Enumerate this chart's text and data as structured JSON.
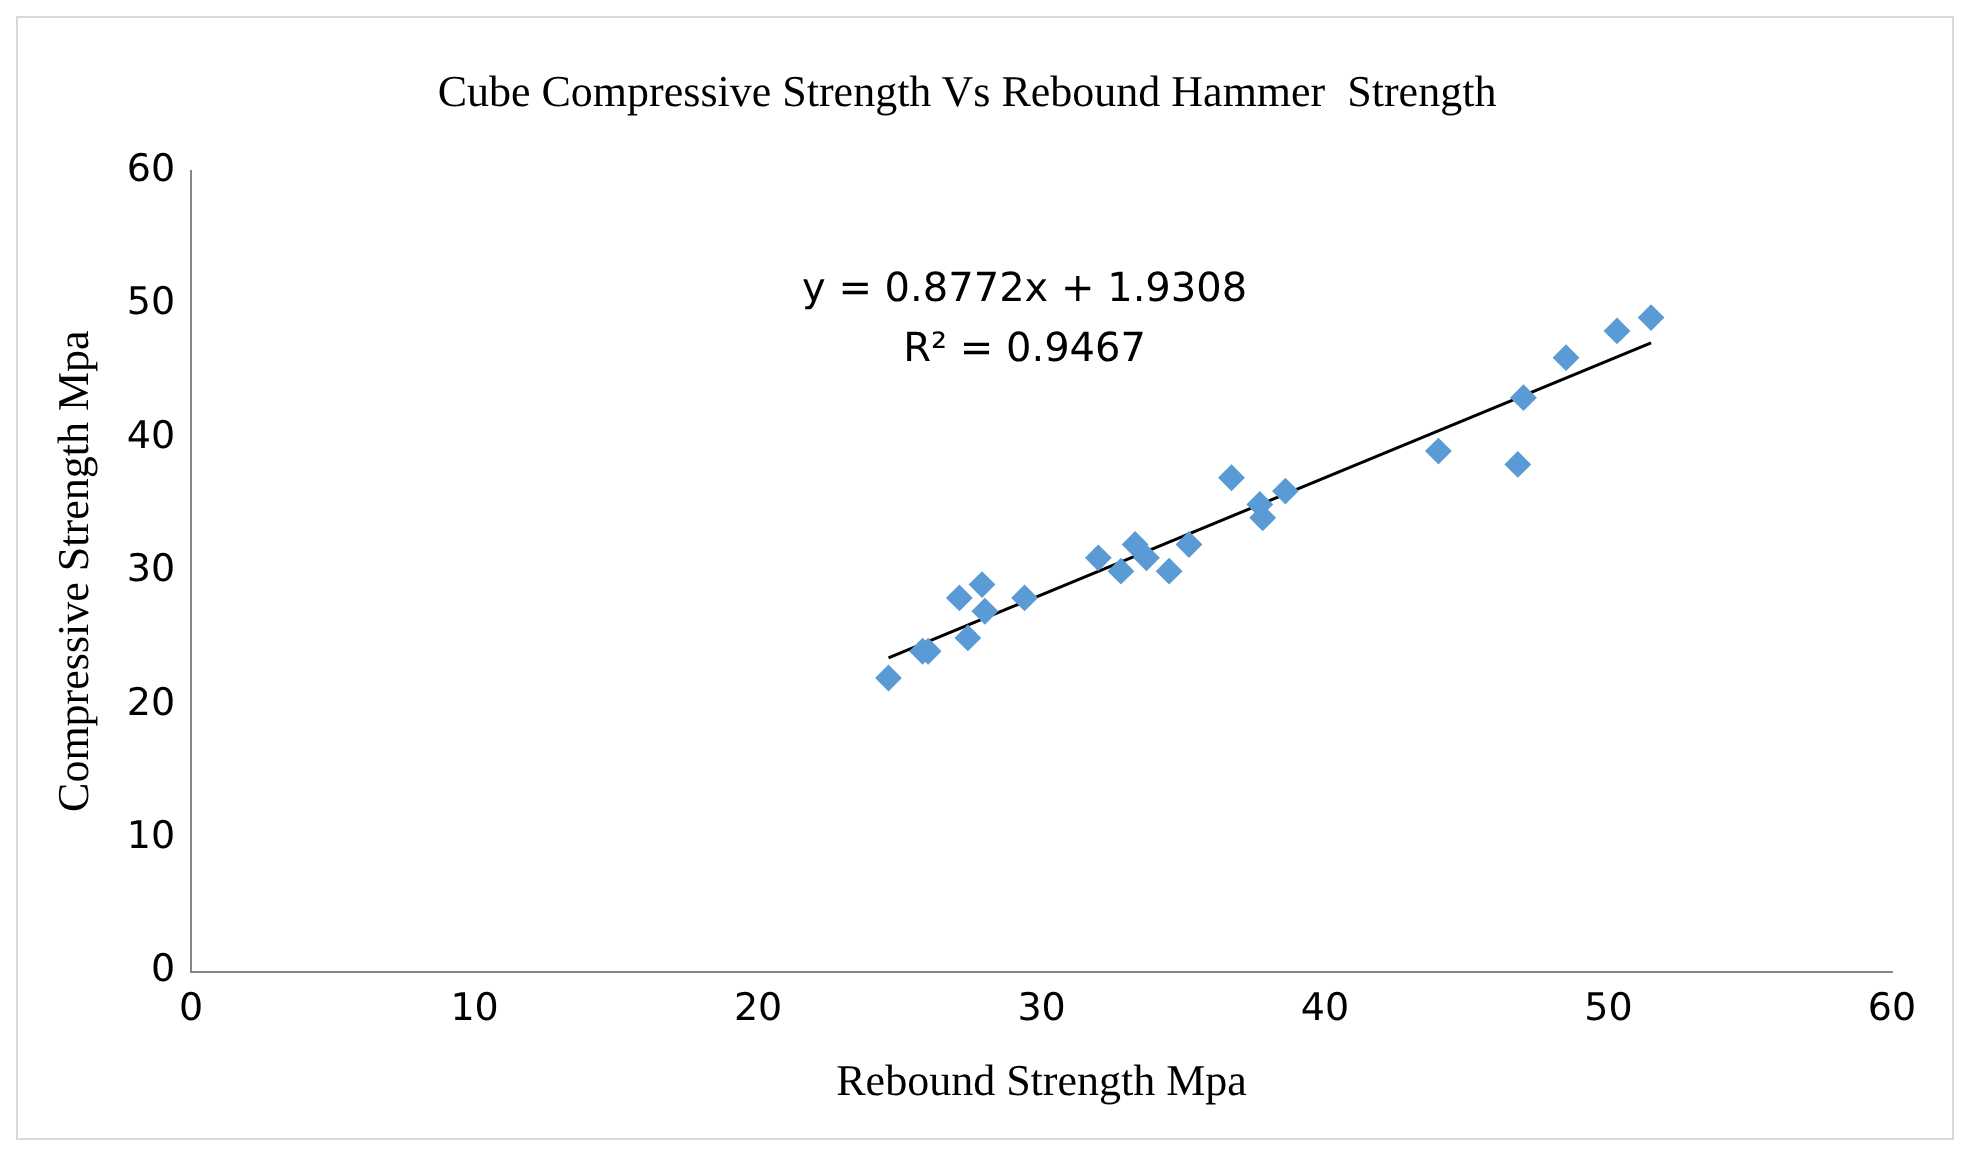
{
  "chart_data": {
    "type": "scatter",
    "title": "Cube Compressive Strength Vs Rebound Hammer  Strength",
    "xlabel": "Rebound Strength Mpa",
    "ylabel": "Compressive Strength Mpa",
    "annotations": [
      "y = 0.8772x + 1.9308",
      "R² = 0.9467"
    ],
    "xlim": [
      0,
      60
    ],
    "xticks": [
      0,
      10,
      20,
      30,
      40,
      50,
      60
    ],
    "ylim": [
      0,
      60
    ],
    "yticks": [
      0,
      10,
      20,
      30,
      40,
      50,
      60
    ],
    "grid": false,
    "legend": false,
    "marker": "diamond",
    "series": [
      {
        "type": "scatter",
        "color": "#5b9bd5",
        "x": [
          24.6,
          25.8,
          26.0,
          27.1,
          27.4,
          27.9,
          28.0,
          29.4,
          32.0,
          32.8,
          33.3,
          33.7,
          34.5,
          35.2,
          36.7,
          37.7,
          37.8,
          38.6,
          44.0,
          46.8,
          47.0,
          48.5,
          50.3,
          51.5
        ],
        "values": [
          22,
          24,
          24,
          28,
          25,
          29,
          27,
          28,
          31,
          30,
          32,
          31,
          30,
          32,
          37,
          35,
          34,
          36,
          39,
          38,
          43,
          46,
          48,
          49
        ]
      },
      {
        "type": "line",
        "color": "#000000",
        "x": [
          24.6,
          51.5
        ],
        "values": [
          23.5,
          47.1
        ],
        "marker": "none"
      }
    ]
  }
}
